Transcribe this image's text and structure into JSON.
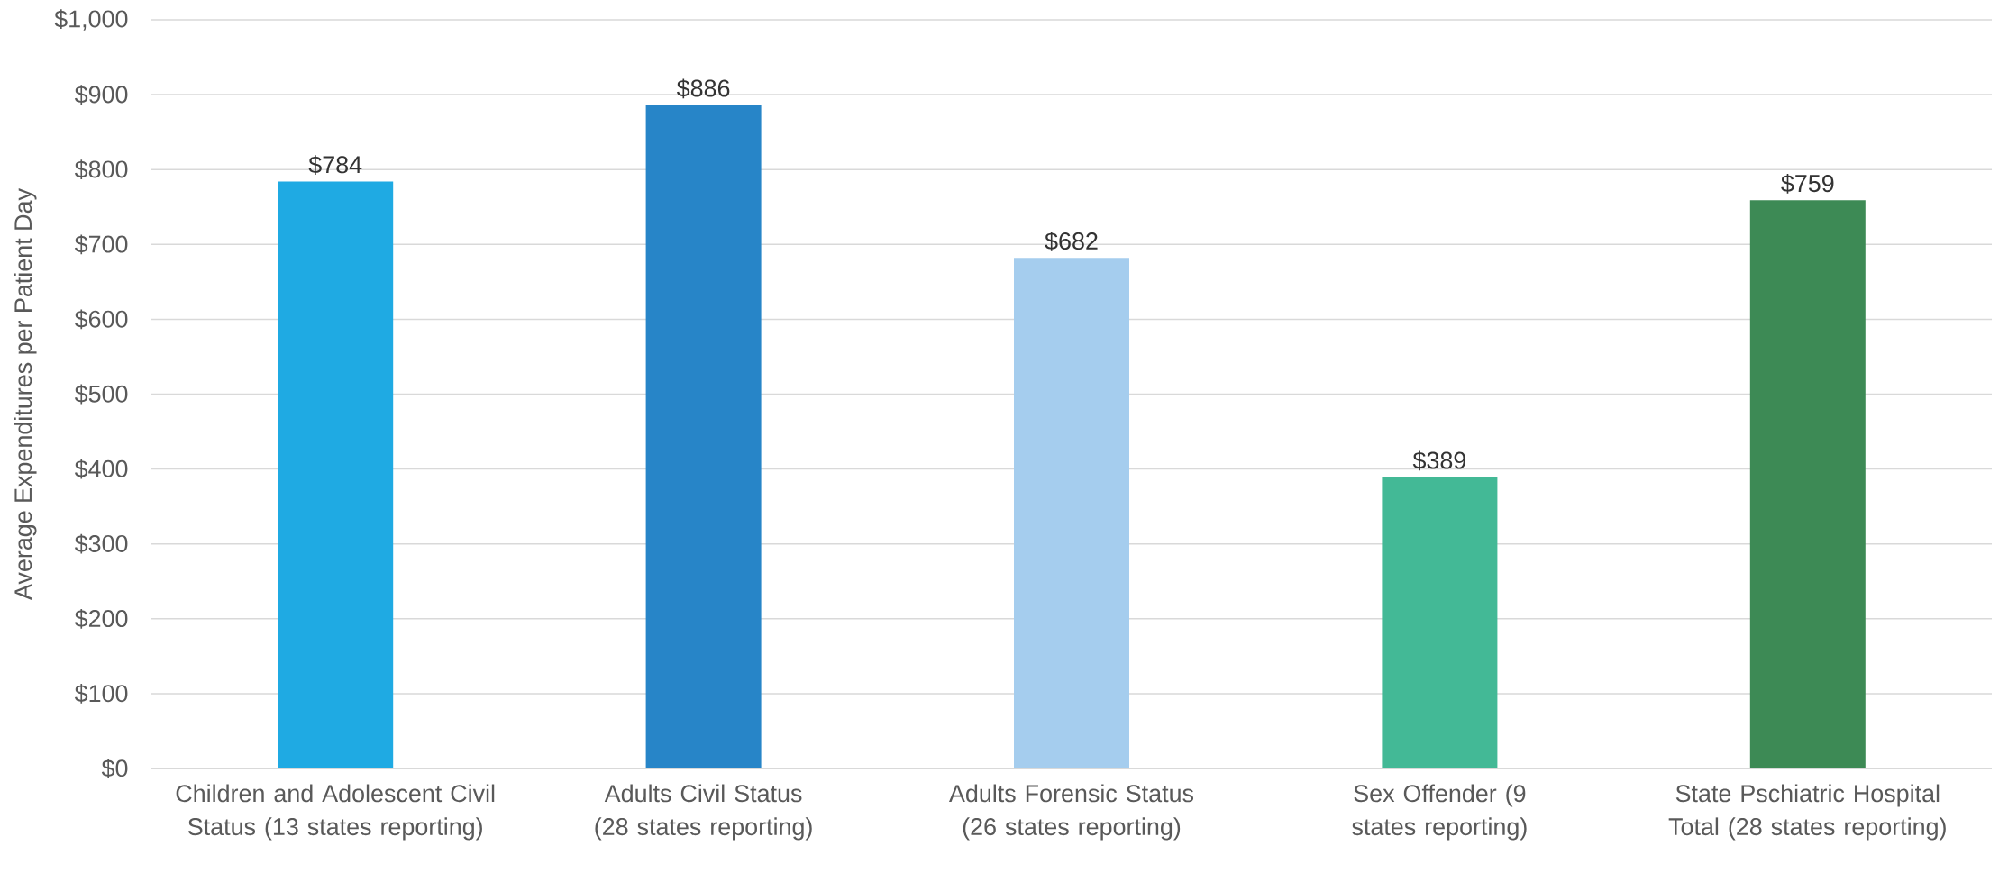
{
  "chart_data": {
    "type": "bar",
    "ylabel": "Average Expenditures per Patient Day",
    "categories": [
      "Children and Adolescent Civil Status (13 states reporting)",
      "Adults Civil Status (28 states reporting)",
      "Adults Forensic Status (26 states reporting)",
      "Sex Offender (9 states reporting)",
      "State Pschiatric Hospital Total (28 states reporting)"
    ],
    "values": [
      784,
      886,
      682,
      389,
      759
    ],
    "value_labels": [
      "$784",
      "$886",
      "$682",
      "$389",
      "$759"
    ],
    "colors": [
      "#1faae3",
      "#2785c8",
      "#a5cdee",
      "#43b996",
      "#3d8a55"
    ],
    "ylim": [
      0,
      1000
    ],
    "yticks": [
      {
        "value": 0,
        "label": "$0"
      },
      {
        "value": 100,
        "label": "$100"
      },
      {
        "value": 200,
        "label": "$200"
      },
      {
        "value": 300,
        "label": "$300"
      },
      {
        "value": 400,
        "label": "$400"
      },
      {
        "value": 500,
        "label": "$500"
      },
      {
        "value": 600,
        "label": "$600"
      },
      {
        "value": 700,
        "label": "$700"
      },
      {
        "value": 800,
        "label": "$800"
      },
      {
        "value": 900,
        "label": "$900"
      },
      {
        "value": 1000,
        "label": "$1,000"
      }
    ],
    "grid": "y"
  }
}
